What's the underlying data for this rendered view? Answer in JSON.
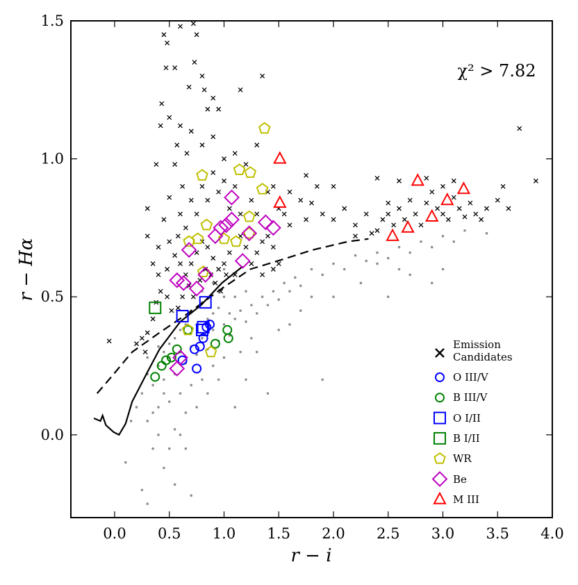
{
  "chart_data": {
    "type": "scatter",
    "annotation": "χ² > 7.82",
    "x_label": "r − i",
    "y_label": "r − Hα",
    "xlim": [
      -0.4,
      4.0
    ],
    "ylim": [
      -0.3,
      1.5
    ],
    "xticks": [
      {
        "value": 0,
        "label": "0.0"
      },
      {
        "value": 0.5,
        "label": "0.5"
      },
      {
        "value": 1,
        "label": "1.0"
      },
      {
        "value": 1.5,
        "label": "1.5"
      },
      {
        "value": 2,
        "label": "2.0"
      },
      {
        "value": 2.5,
        "label": "2.5"
      },
      {
        "value": 3,
        "label": "3.0"
      },
      {
        "value": 3.5,
        "label": "3.5"
      },
      {
        "value": 4,
        "label": "4.0"
      }
    ],
    "yticks": [
      {
        "value": 0,
        "label": "0.0"
      },
      {
        "value": 0.5,
        "label": "0.5"
      },
      {
        "value": 1,
        "label": "1.0"
      },
      {
        "value": 1.5,
        "label": "1.5"
      }
    ],
    "grid": false,
    "legend": "lower right",
    "lines": [
      {
        "style": "solid",
        "color": "#000000",
        "x": [
          -0.19,
          -0.13,
          -0.11,
          -0.08,
          -0.01,
          0.04,
          0.1,
          0.16,
          0.29,
          0.41,
          0.6,
          0.79,
          0.98,
          1.17
        ],
        "y": [
          0.06,
          0.05,
          0.07,
          0.035,
          0.01,
          0.0,
          0.04,
          0.12,
          0.22,
          0.31,
          0.41,
          0.47,
          0.55,
          0.61
        ]
      },
      {
        "style": "dashed",
        "color": "#000000",
        "x": [
          -0.16,
          -0.03,
          0.16,
          0.41,
          0.67,
          0.98,
          1.24,
          1.49,
          1.81,
          2.13,
          2.32
        ],
        "y": [
          0.15,
          0.21,
          0.3,
          0.37,
          0.44,
          0.53,
          0.6,
          0.63,
          0.67,
          0.7,
          0.71
        ]
      }
    ],
    "series": [
      {
        "marker": "dot",
        "color": "#8c8c8c",
        "x": [
          0.3,
          0.35,
          0.4,
          0.45,
          0.5,
          0.55,
          0.6,
          0.65,
          0.7,
          0.75,
          0.8,
          0.85,
          0.9,
          0.95,
          1.0,
          1.05,
          1.1,
          1.15,
          1.2,
          1.25,
          1.3,
          1.35,
          1.4,
          1.45,
          1.5,
          1.55,
          1.6,
          1.65,
          1.7,
          1.8,
          1.9,
          2.0,
          2.1,
          2.2,
          2.3,
          2.4,
          2.5,
          2.6,
          2.7,
          2.8,
          2.9,
          3.0,
          3.1,
          3.2,
          3.4,
          2.9,
          2.6,
          2.4,
          0.7,
          0.8,
          0.9,
          1.0,
          1.1,
          1.2,
          0.75,
          0.85,
          0.95,
          1.05,
          0.6,
          0.65,
          0.55,
          0.5,
          0.45,
          0.4,
          0.3,
          0.25,
          0.2,
          0.15,
          0.3,
          0.4,
          0.5,
          0.6,
          0.7,
          0.8,
          0.9,
          1.0,
          0.55,
          0.65,
          0.75,
          0.35,
          0.45,
          0.55,
          0.25,
          0.65,
          0.1,
          0.3,
          0.7,
          1.1,
          1.3,
          1.9,
          1.4,
          1.6,
          1.7,
          1.8,
          2.0,
          1.5,
          1.25,
          1.15,
          0.85,
          0.95,
          1.0,
          0.9,
          0.8,
          1.2,
          0.6,
          0.5,
          0.4,
          0.35,
          0.45,
          2.25,
          2.5,
          3.0,
          2.7
        ],
        "y": [
          0.22,
          0.18,
          0.25,
          0.2,
          0.28,
          0.22,
          0.3,
          0.26,
          0.32,
          0.29,
          0.35,
          0.31,
          0.38,
          0.34,
          0.4,
          0.36,
          0.42,
          0.45,
          0.41,
          0.47,
          0.44,
          0.5,
          0.47,
          0.52,
          0.49,
          0.55,
          0.52,
          0.57,
          0.54,
          0.6,
          0.58,
          0.62,
          0.6,
          0.65,
          0.63,
          0.66,
          0.64,
          0.68,
          0.66,
          0.7,
          0.68,
          0.72,
          0.7,
          0.74,
          0.73,
          0.55,
          0.6,
          0.62,
          0.45,
          0.48,
          0.44,
          0.5,
          0.5,
          0.52,
          0.4,
          0.42,
          0.46,
          0.44,
          0.38,
          0.4,
          0.35,
          0.33,
          0.3,
          0.32,
          0.28,
          0.15,
          0.1,
          0.05,
          0.05,
          0.1,
          0.12,
          0.15,
          0.18,
          0.2,
          0.25,
          0.28,
          0.02,
          0.08,
          0.1,
          -0.05,
          -0.12,
          -0.18,
          -0.2,
          -0.05,
          -0.1,
          -0.25,
          -0.22,
          0.1,
          0.3,
          0.2,
          0.15,
          0.4,
          0.45,
          0.5,
          0.5,
          0.38,
          0.35,
          0.3,
          0.15,
          0.2,
          0.6,
          0.55,
          0.52,
          0.2,
          0.0,
          -0.05,
          0.0,
          0.08,
          0.15,
          0.55,
          0.5,
          0.6,
          0.58
        ]
      },
      {
        "name": "Emission Candidates",
        "marker": "x",
        "color": "#000000",
        "x": [
          0.45,
          0.48,
          0.55,
          0.47,
          0.6,
          0.72,
          0.75,
          0.8,
          0.85,
          0.9,
          0.43,
          0.5,
          0.66,
          0.7,
          0.62,
          0.55,
          0.38,
          0.3,
          0.45,
          0.5,
          0.55,
          0.6,
          0.65,
          0.7,
          0.75,
          0.8,
          0.85,
          0.9,
          0.95,
          1.0,
          1.05,
          1.1,
          1.15,
          1.2,
          1.25,
          1.3,
          1.35,
          1.4,
          1.45,
          1.5,
          1.55,
          1.6,
          0.4,
          0.42,
          0.38,
          0.35,
          0.3,
          0.25,
          0.28,
          0.2,
          -0.05,
          0.48,
          0.52,
          0.58,
          0.62,
          0.68,
          0.72,
          0.78,
          0.83,
          0.88,
          0.92,
          0.97,
          1.02,
          0.7,
          0.75,
          0.8,
          0.85,
          0.9,
          0.95,
          1.0,
          1.05,
          1.1,
          1.15,
          1.25,
          1.3,
          1.4,
          1.45,
          1.6,
          1.7,
          1.75,
          1.8,
          0.65,
          0.6,
          0.58,
          0.5,
          0.57,
          0.6,
          0.8,
          0.9,
          1.0,
          1.1,
          1.2,
          1.3,
          0.95,
          1.15,
          1.35,
          0.82,
          0.73,
          0.68,
          0.42,
          1.9,
          2.0,
          2.1,
          2.2,
          2.3,
          2.4,
          2.45,
          2.5,
          2.55,
          2.6,
          2.65,
          2.7,
          2.75,
          2.8,
          2.85,
          2.9,
          2.95,
          3.0,
          3.05,
          3.1,
          3.15,
          3.2,
          3.25,
          3.3,
          3.35,
          3.4,
          3.5,
          3.6,
          3.55,
          3.1,
          3.0,
          2.85,
          2.6,
          2.5,
          2.35,
          2.2,
          3.7,
          3.85,
          2.4,
          1.85,
          1.75,
          2.0,
          0.3,
          0.35,
          0.4,
          0.48,
          1.45,
          1.5,
          1.35
        ],
        "y": [
          1.45,
          1.42,
          1.33,
          1.33,
          1.48,
          1.49,
          1.45,
          1.3,
          1.18,
          1.22,
          1.2,
          1.15,
          1.02,
          1.1,
          0.9,
          0.98,
          0.98,
          0.82,
          0.78,
          0.7,
          0.65,
          0.62,
          0.58,
          0.62,
          0.66,
          0.7,
          0.68,
          0.64,
          0.6,
          0.62,
          0.66,
          0.58,
          0.72,
          0.68,
          0.62,
          0.66,
          0.7,
          0.72,
          0.68,
          0.82,
          0.8,
          0.76,
          0.58,
          0.52,
          0.48,
          0.42,
          0.37,
          0.35,
          0.3,
          0.33,
          0.34,
          0.5,
          0.45,
          0.46,
          0.5,
          0.54,
          0.5,
          0.56,
          0.6,
          0.58,
          0.55,
          0.52,
          0.58,
          0.85,
          0.8,
          0.9,
          0.85,
          0.95,
          0.88,
          0.92,
          0.82,
          0.9,
          0.8,
          0.85,
          0.8,
          0.88,
          0.9,
          0.88,
          0.85,
          0.78,
          0.84,
          0.75,
          0.8,
          0.72,
          0.86,
          1.05,
          1.12,
          1.05,
          1.08,
          1.0,
          1.02,
          0.98,
          1.05,
          1.18,
          1.25,
          1.3,
          1.25,
          1.35,
          1.26,
          1.12,
          0.8,
          0.78,
          0.82,
          0.76,
          0.8,
          0.74,
          0.78,
          0.8,
          0.76,
          0.82,
          0.78,
          0.85,
          0.8,
          0.76,
          0.84,
          0.88,
          0.82,
          0.8,
          0.78,
          0.86,
          0.82,
          0.79,
          0.84,
          0.8,
          0.78,
          0.82,
          0.85,
          0.82,
          0.9,
          0.92,
          0.9,
          0.93,
          0.92,
          0.84,
          0.73,
          0.72,
          1.11,
          0.92,
          0.93,
          0.9,
          0.94,
          0.9,
          0.72,
          0.62,
          0.68,
          0.6,
          0.6,
          0.62,
          0.58
        ]
      },
      {
        "name": "O III/V",
        "marker": "circle",
        "color": "#0000ff",
        "x": [
          0.62,
          0.75,
          0.73,
          0.78,
          0.81,
          0.87,
          0.84
        ],
        "y": [
          0.27,
          0.24,
          0.31,
          0.32,
          0.35,
          0.4,
          0.39
        ]
      },
      {
        "name": "B III/V",
        "marker": "circle",
        "color": "#008000",
        "x": [
          0.37,
          0.43,
          0.47,
          0.52,
          0.57,
          0.67,
          0.92,
          1.04,
          1.03
        ],
        "y": [
          0.21,
          0.25,
          0.27,
          0.28,
          0.31,
          0.38,
          0.33,
          0.35,
          0.38
        ]
      },
      {
        "name": "O I/II",
        "marker": "square",
        "color": "#0000ff",
        "x": [
          0.62,
          0.83,
          0.81,
          0.8
        ],
        "y": [
          0.43,
          0.48,
          0.39,
          0.38
        ]
      },
      {
        "name": "B I/II",
        "marker": "square",
        "color": "#008000",
        "x": [
          0.37
        ],
        "y": [
          0.46
        ]
      },
      {
        "name": "WR",
        "marker": "pentagon",
        "color": "#bfbf00",
        "x": [
          1.37,
          0.8,
          1.14,
          1.24,
          1.35,
          1.23,
          0.84,
          1.0,
          1.11,
          1.23,
          0.68,
          0.76,
          0.81,
          0.67,
          0.88
        ],
        "y": [
          1.11,
          0.94,
          0.96,
          0.95,
          0.89,
          0.79,
          0.76,
          0.71,
          0.7,
          0.73,
          0.7,
          0.71,
          0.59,
          0.38,
          0.3
        ]
      },
      {
        "name": "Be",
        "marker": "diamond",
        "color": "#bf00bf",
        "x": [
          1.07,
          1.02,
          1.07,
          0.92,
          0.97,
          1.38,
          1.45,
          1.23,
          1.17,
          0.68,
          0.57,
          0.63,
          0.75,
          0.83,
          0.57,
          0.6
        ],
        "y": [
          0.86,
          0.76,
          0.78,
          0.72,
          0.75,
          0.77,
          0.75,
          0.73,
          0.63,
          0.67,
          0.56,
          0.55,
          0.53,
          0.58,
          0.24,
          0.28
        ]
      },
      {
        "name": "M III",
        "marker": "triangle",
        "color": "#ff0000",
        "x": [
          1.51,
          1.51,
          2.54,
          2.68,
          2.77,
          2.9,
          3.04,
          3.19
        ],
        "y": [
          1.0,
          0.84,
          0.72,
          0.75,
          0.92,
          0.79,
          0.85,
          0.89
        ]
      }
    ]
  }
}
